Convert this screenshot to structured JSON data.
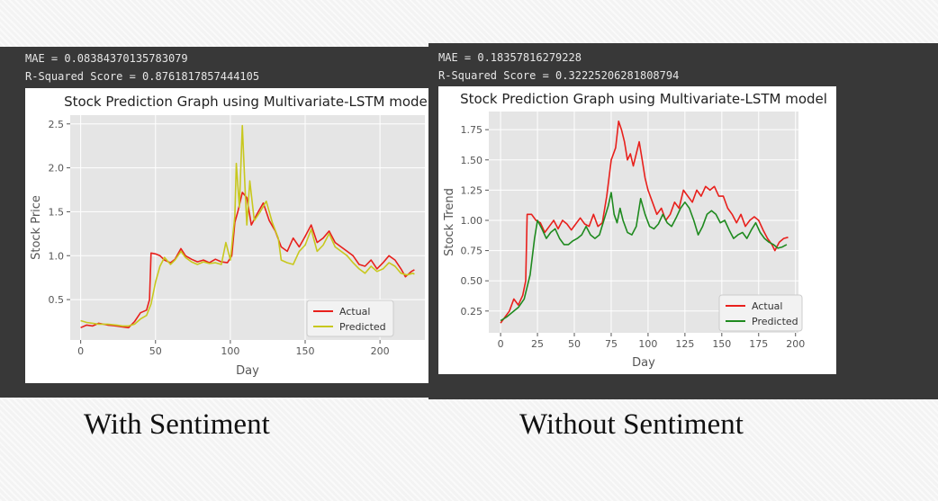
{
  "panels": [
    {
      "mae_line": "MAE = 0.08384370135783079",
      "r2_line": "R-Squared Score = 0.8761817857444105",
      "caption": "With Sentiment"
    },
    {
      "mae_line": "MAE = 0.18357816279228",
      "r2_line": "R-Squared Score = 0.32225206281808794",
      "caption": "Without Sentiment"
    }
  ],
  "colors": {
    "actual": "#e8201c",
    "predicted_left": "#c8c81e",
    "predicted_right": "#1f8a1f",
    "plot_bg": "#e5e5e5",
    "grid": "#ffffff"
  },
  "chart_data": [
    {
      "type": "line",
      "title": "Stock Prediction Graph using Multivariate-LSTM model",
      "xlabel": "Day",
      "ylabel": "Stock Price",
      "xlim": [
        -7,
        230
      ],
      "ylim": [
        0.04,
        2.6
      ],
      "xticks": [
        0,
        50,
        100,
        150,
        200
      ],
      "xtick_labels": [
        "0",
        "50",
        "100",
        "150",
        "200"
      ],
      "yticks": [
        0.5,
        1.0,
        1.5,
        2.0,
        2.5
      ],
      "ytick_labels": [
        "0.5",
        "1.0",
        "1.5",
        "2.0",
        "2.5"
      ],
      "grid": true,
      "legend_position": "lower-right",
      "series": [
        {
          "name": "Actual",
          "points": [
            [
              0,
              0.18
            ],
            [
              4,
              0.21
            ],
            [
              8,
              0.2
            ],
            [
              12,
              0.23
            ],
            [
              18,
              0.21
            ],
            [
              24,
              0.2
            ],
            [
              28,
              0.19
            ],
            [
              32,
              0.18
            ],
            [
              36,
              0.25
            ],
            [
              40,
              0.35
            ],
            [
              44,
              0.38
            ],
            [
              46,
              0.5
            ],
            [
              47,
              1.03
            ],
            [
              50,
              1.02
            ],
            [
              53,
              1.0
            ],
            [
              56,
              0.95
            ],
            [
              60,
              0.92
            ],
            [
              63,
              0.96
            ],
            [
              67,
              1.08
            ],
            [
              70,
              1.0
            ],
            [
              74,
              0.96
            ],
            [
              78,
              0.93
            ],
            [
              82,
              0.95
            ],
            [
              86,
              0.92
            ],
            [
              90,
              0.96
            ],
            [
              94,
              0.93
            ],
            [
              98,
              0.92
            ],
            [
              101,
              1.0
            ],
            [
              103,
              1.38
            ],
            [
              105,
              1.5
            ],
            [
              108,
              1.72
            ],
            [
              111,
              1.66
            ],
            [
              114,
              1.35
            ],
            [
              118,
              1.48
            ],
            [
              122,
              1.6
            ],
            [
              126,
              1.4
            ],
            [
              130,
              1.28
            ],
            [
              134,
              1.1
            ],
            [
              138,
              1.05
            ],
            [
              142,
              1.2
            ],
            [
              146,
              1.1
            ],
            [
              150,
              1.22
            ],
            [
              154,
              1.35
            ],
            [
              158,
              1.15
            ],
            [
              162,
              1.2
            ],
            [
              166,
              1.28
            ],
            [
              170,
              1.15
            ],
            [
              174,
              1.1
            ],
            [
              178,
              1.05
            ],
            [
              182,
              1.0
            ],
            [
              186,
              0.9
            ],
            [
              190,
              0.88
            ],
            [
              194,
              0.95
            ],
            [
              198,
              0.85
            ],
            [
              202,
              0.92
            ],
            [
              206,
              1.0
            ],
            [
              210,
              0.95
            ],
            [
              214,
              0.85
            ],
            [
              217,
              0.76
            ],
            [
              221,
              0.82
            ],
            [
              223,
              0.84
            ]
          ]
        },
        {
          "name": "Predicted",
          "points": [
            [
              0,
              0.26
            ],
            [
              4,
              0.24
            ],
            [
              8,
              0.23
            ],
            [
              12,
              0.22
            ],
            [
              18,
              0.22
            ],
            [
              24,
              0.21
            ],
            [
              28,
              0.2
            ],
            [
              32,
              0.2
            ],
            [
              36,
              0.22
            ],
            [
              40,
              0.28
            ],
            [
              44,
              0.32
            ],
            [
              47,
              0.45
            ],
            [
              50,
              0.7
            ],
            [
              53,
              0.88
            ],
            [
              56,
              0.98
            ],
            [
              60,
              0.9
            ],
            [
              63,
              0.95
            ],
            [
              67,
              1.05
            ],
            [
              70,
              0.98
            ],
            [
              74,
              0.93
            ],
            [
              78,
              0.9
            ],
            [
              82,
              0.93
            ],
            [
              86,
              0.91
            ],
            [
              90,
              0.92
            ],
            [
              94,
              0.9
            ],
            [
              97,
              1.15
            ],
            [
              100,
              0.95
            ],
            [
              103,
              1.45
            ],
            [
              104,
              2.05
            ],
            [
              106,
              1.55
            ],
            [
              108,
              2.48
            ],
            [
              110,
              1.7
            ],
            [
              111,
              1.35
            ],
            [
              113,
              1.85
            ],
            [
              116,
              1.4
            ],
            [
              120,
              1.5
            ],
            [
              124,
              1.62
            ],
            [
              128,
              1.38
            ],
            [
              132,
              1.2
            ],
            [
              134,
              0.95
            ],
            [
              138,
              0.92
            ],
            [
              142,
              0.9
            ],
            [
              146,
              1.05
            ],
            [
              150,
              1.12
            ],
            [
              154,
              1.3
            ],
            [
              158,
              1.05
            ],
            [
              162,
              1.12
            ],
            [
              166,
              1.25
            ],
            [
              170,
              1.1
            ],
            [
              174,
              1.05
            ],
            [
              178,
              1.0
            ],
            [
              182,
              0.92
            ],
            [
              186,
              0.85
            ],
            [
              190,
              0.8
            ],
            [
              194,
              0.88
            ],
            [
              198,
              0.82
            ],
            [
              202,
              0.85
            ],
            [
              206,
              0.92
            ],
            [
              210,
              0.88
            ],
            [
              214,
              0.8
            ],
            [
              218,
              0.78
            ],
            [
              222,
              0.8
            ],
            [
              223,
              0.79
            ]
          ]
        }
      ]
    },
    {
      "type": "line",
      "title": "Stock Prediction Graph using Multivariate-LSTM model",
      "xlabel": "Day",
      "ylabel": "Stock Trend",
      "xlim": [
        -8,
        202
      ],
      "ylim": [
        0.07,
        1.9
      ],
      "xticks": [
        0,
        25,
        50,
        75,
        100,
        125,
        150,
        175,
        200
      ],
      "xtick_labels": [
        "0",
        "25",
        "50",
        "75",
        "100",
        "125",
        "150",
        "175",
        "200"
      ],
      "yticks": [
        0.25,
        0.5,
        0.75,
        1.0,
        1.25,
        1.5,
        1.75
      ],
      "ytick_labels": [
        "0.25",
        "0.50",
        "0.75",
        "1.00",
        "1.25",
        "1.50",
        "1.75"
      ],
      "grid": true,
      "legend_position": "lower-right",
      "series": [
        {
          "name": "Actual",
          "points": [
            [
              0,
              0.15
            ],
            [
              3,
              0.2
            ],
            [
              6,
              0.25
            ],
            [
              9,
              0.35
            ],
            [
              12,
              0.3
            ],
            [
              15,
              0.38
            ],
            [
              17,
              0.5
            ],
            [
              18,
              1.05
            ],
            [
              21,
              1.05
            ],
            [
              24,
              1.0
            ],
            [
              27,
              0.98
            ],
            [
              30,
              0.9
            ],
            [
              33,
              0.95
            ],
            [
              36,
              1.0
            ],
            [
              39,
              0.93
            ],
            [
              42,
              1.0
            ],
            [
              45,
              0.97
            ],
            [
              48,
              0.92
            ],
            [
              51,
              0.97
            ],
            [
              54,
              1.02
            ],
            [
              57,
              0.97
            ],
            [
              60,
              0.95
            ],
            [
              63,
              1.05
            ],
            [
              66,
              0.95
            ],
            [
              69,
              0.98
            ],
            [
              72,
              1.2
            ],
            [
              75,
              1.5
            ],
            [
              78,
              1.6
            ],
            [
              80,
              1.82
            ],
            [
              82,
              1.75
            ],
            [
              84,
              1.65
            ],
            [
              86,
              1.5
            ],
            [
              88,
              1.55
            ],
            [
              90,
              1.45
            ],
            [
              92,
              1.55
            ],
            [
              94,
              1.65
            ],
            [
              96,
              1.5
            ],
            [
              98,
              1.35
            ],
            [
              100,
              1.25
            ],
            [
              103,
              1.15
            ],
            [
              106,
              1.05
            ],
            [
              109,
              1.1
            ],
            [
              112,
              1.0
            ],
            [
              115,
              1.05
            ],
            [
              118,
              1.15
            ],
            [
              121,
              1.1
            ],
            [
              124,
              1.25
            ],
            [
              127,
              1.2
            ],
            [
              130,
              1.15
            ],
            [
              133,
              1.25
            ],
            [
              136,
              1.2
            ],
            [
              139,
              1.28
            ],
            [
              142,
              1.25
            ],
            [
              145,
              1.28
            ],
            [
              148,
              1.2
            ],
            [
              151,
              1.2
            ],
            [
              154,
              1.1
            ],
            [
              157,
              1.05
            ],
            [
              160,
              0.98
            ],
            [
              163,
              1.05
            ],
            [
              166,
              0.95
            ],
            [
              169,
              1.0
            ],
            [
              172,
              1.03
            ],
            [
              175,
              1.0
            ],
            [
              178,
              0.92
            ],
            [
              181,
              0.85
            ],
            [
              184,
              0.8
            ],
            [
              186,
              0.75
            ],
            [
              189,
              0.82
            ],
            [
              192,
              0.85
            ],
            [
              195,
              0.86
            ]
          ]
        },
        {
          "name": "Predicted",
          "points": [
            [
              0,
              0.17
            ],
            [
              4,
              0.2
            ],
            [
              8,
              0.24
            ],
            [
              12,
              0.28
            ],
            [
              16,
              0.35
            ],
            [
              20,
              0.55
            ],
            [
              23,
              0.85
            ],
            [
              25,
              1.0
            ],
            [
              28,
              0.93
            ],
            [
              31,
              0.85
            ],
            [
              34,
              0.9
            ],
            [
              37,
              0.93
            ],
            [
              40,
              0.85
            ],
            [
              43,
              0.8
            ],
            [
              46,
              0.8
            ],
            [
              49,
              0.83
            ],
            [
              52,
              0.85
            ],
            [
              55,
              0.88
            ],
            [
              58,
              0.95
            ],
            [
              61,
              0.88
            ],
            [
              64,
              0.85
            ],
            [
              67,
              0.88
            ],
            [
              70,
              1.0
            ],
            [
              73,
              1.12
            ],
            [
              75,
              1.23
            ],
            [
              77,
              1.05
            ],
            [
              79,
              0.98
            ],
            [
              81,
              1.1
            ],
            [
              83,
              1.0
            ],
            [
              86,
              0.9
            ],
            [
              89,
              0.88
            ],
            [
              92,
              0.95
            ],
            [
              95,
              1.18
            ],
            [
              98,
              1.05
            ],
            [
              101,
              0.95
            ],
            [
              104,
              0.93
            ],
            [
              107,
              0.97
            ],
            [
              110,
              1.05
            ],
            [
              113,
              0.98
            ],
            [
              116,
              0.95
            ],
            [
              119,
              1.02
            ],
            [
              122,
              1.1
            ],
            [
              125,
              1.15
            ],
            [
              128,
              1.1
            ],
            [
              131,
              1.0
            ],
            [
              134,
              0.88
            ],
            [
              137,
              0.95
            ],
            [
              140,
              1.05
            ],
            [
              143,
              1.08
            ],
            [
              146,
              1.05
            ],
            [
              149,
              0.98
            ],
            [
              152,
              1.0
            ],
            [
              155,
              0.92
            ],
            [
              158,
              0.85
            ],
            [
              161,
              0.88
            ],
            [
              164,
              0.9
            ],
            [
              167,
              0.85
            ],
            [
              170,
              0.92
            ],
            [
              173,
              0.98
            ],
            [
              176,
              0.9
            ],
            [
              179,
              0.85
            ],
            [
              182,
              0.82
            ],
            [
              185,
              0.8
            ],
            [
              188,
              0.77
            ],
            [
              191,
              0.78
            ],
            [
              194,
              0.8
            ]
          ]
        }
      ]
    }
  ]
}
